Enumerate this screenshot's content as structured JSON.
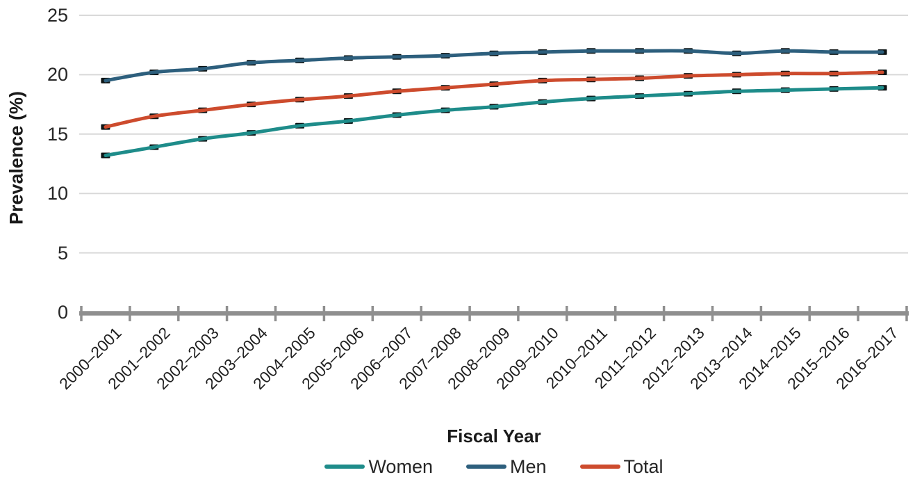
{
  "chart_data": {
    "type": "line",
    "title": "",
    "xlabel": "Fiscal Year",
    "ylabel": "Prevalence (%)",
    "ylim": [
      0,
      25
    ],
    "y_ticks": [
      0,
      5,
      10,
      15,
      20,
      25
    ],
    "grid": "horizontal",
    "legend_position": "bottom",
    "marker_style": "short black dash at each data point",
    "categories": [
      "2000–2001",
      "2001–2002",
      "2002–2003",
      "2003–2004",
      "2004–2005",
      "2005–2006",
      "2006–2007",
      "2007–2008",
      "2008–2009",
      "2009–2010",
      "2010–2011",
      "2011–2012",
      "2012–2013",
      "2013–2014",
      "2014–2015",
      "2015–2016",
      "2016–2017"
    ],
    "series": [
      {
        "name": "Women",
        "color": "#1e8c8a",
        "values": [
          13.2,
          13.9,
          14.6,
          15.1,
          15.7,
          16.1,
          16.6,
          17.0,
          17.3,
          17.7,
          18.0,
          18.2,
          18.4,
          18.6,
          18.7,
          18.8,
          18.9
        ]
      },
      {
        "name": "Men",
        "color": "#2d5f7d",
        "values": [
          19.5,
          20.2,
          20.5,
          21.0,
          21.2,
          21.4,
          21.5,
          21.6,
          21.8,
          21.9,
          22.0,
          22.0,
          22.0,
          21.8,
          22.0,
          21.9,
          21.9
        ]
      },
      {
        "name": "Total",
        "color": "#cd4b2d",
        "values": [
          15.6,
          16.5,
          17.0,
          17.5,
          17.9,
          18.2,
          18.6,
          18.9,
          19.2,
          19.5,
          19.6,
          19.7,
          19.9,
          20.0,
          20.1,
          20.1,
          20.2
        ]
      }
    ]
  },
  "y_axis": {
    "title": "Prevalence (%)"
  },
  "x_axis": {
    "title": "Fiscal Year"
  },
  "colors": {
    "grid": "#d9d9d9",
    "axis": "#8f8f8f",
    "marker": "#0e1516",
    "text": "#262626"
  }
}
